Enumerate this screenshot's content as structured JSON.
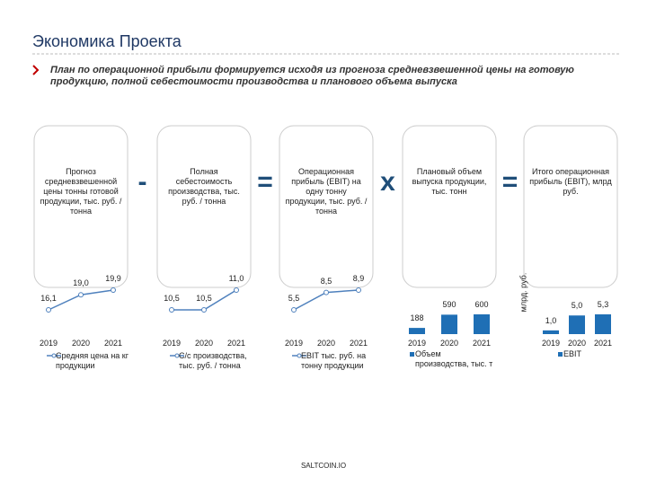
{
  "header": {
    "title": "Экономика Проекта",
    "subtitle": "План по операционной прибыли формируется исходя из прогноза средневзвешенной цены на готовую продукцию, полной себестоимости производства и планового объема выпуска"
  },
  "operators": [
    "-",
    "=",
    "x",
    "="
  ],
  "footer": "SALTCOIN.IO",
  "chart_data": [
    {
      "type": "line",
      "description": "Прогноз средневзвешенной цены тонны готовой продукции, тыс. руб. / тонна",
      "categories": [
        "2019",
        "2020",
        "2021"
      ],
      "series": [
        {
          "name": "Средняя цена на кг продукции",
          "color": "#4f81bd",
          "values": [
            16.1,
            19.0,
            19.9
          ],
          "value_labels": [
            "16,1",
            "19,0",
            "19,9"
          ]
        }
      ]
    },
    {
      "type": "line",
      "description": "Полная себестоимость производства, тыс. руб. / тонна",
      "categories": [
        "2019",
        "2020",
        "2021"
      ],
      "series": [
        {
          "name": "С/с производства, тыс. руб. / тонна",
          "color": "#4f81bd",
          "values": [
            10.5,
            10.5,
            11.0
          ],
          "value_labels": [
            "10,5",
            "10,5",
            "11,0"
          ]
        }
      ]
    },
    {
      "type": "line",
      "description": "Операционная прибыль (EBIT) на одну тонну продукции, тыс. руб. / тонна",
      "categories": [
        "2019",
        "2020",
        "2021"
      ],
      "series": [
        {
          "name": "EBIT тыс. руб. на тонну продукции",
          "color": "#4f81bd",
          "values": [
            5.5,
            8.5,
            8.9
          ],
          "value_labels": [
            "5,5",
            "8,5",
            "8,9"
          ]
        }
      ]
    },
    {
      "type": "bar",
      "description": "Плановый объем выпуска продукции, тыс. тонн",
      "categories": [
        "2019",
        "2020",
        "2021"
      ],
      "series": [
        {
          "name": "Объем производства, тыс. т",
          "color": "#1f6fb5",
          "values": [
            188,
            590,
            600
          ]
        }
      ]
    },
    {
      "type": "bar",
      "description": "Итого операционная прибыль (EBIT), млрд руб.",
      "ylabel": "млрд. руб.",
      "categories": [
        "2019",
        "2020",
        "2021"
      ],
      "series": [
        {
          "name": "EBIT",
          "color": "#1f6fb5",
          "values": [
            1.0,
            5.0,
            5.3
          ],
          "value_labels": [
            "1,0",
            "5,0",
            "5,3"
          ]
        }
      ]
    }
  ]
}
